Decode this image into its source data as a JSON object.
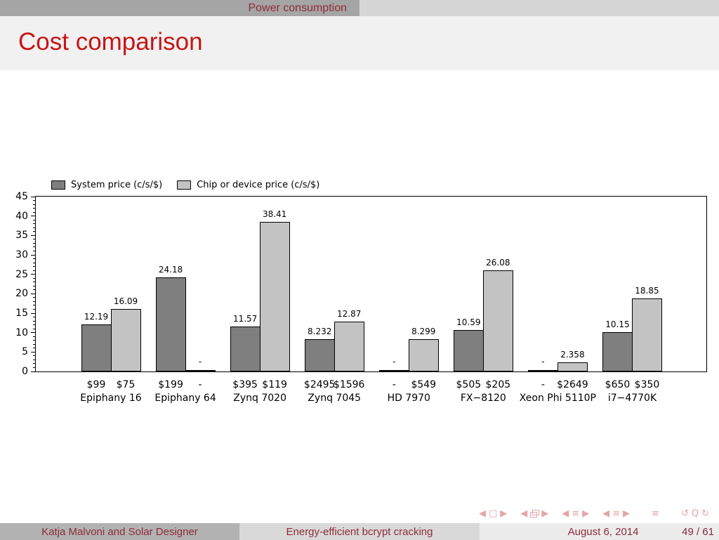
{
  "slide": {
    "navbar": {
      "section": "Power consumption"
    },
    "title": "Cost comparison",
    "footer": {
      "authors": "Katja Malvoni and Solar Designer",
      "talk": "Energy-efficient bcrypt cracking",
      "date": "August 6, 2014",
      "page": "49 / 61"
    }
  },
  "chart_data": {
    "type": "bar",
    "title": "",
    "xlabel": "",
    "ylabel": "",
    "ylim": [
      0,
      45
    ],
    "yticks": [
      0,
      5,
      10,
      15,
      20,
      25,
      30,
      35,
      40,
      45
    ],
    "ytick_minor_step": 1,
    "grid": false,
    "legend_position": "top-left",
    "categories": [
      "Epiphany 16",
      "Epiphany 64",
      "Zynq 7020",
      "Zynq 7045",
      "HD 7970",
      "FX−8120",
      "Xeon Phi 5110P",
      "i7−4770K"
    ],
    "series": [
      {
        "name": "System price (c/s/$)",
        "color": "#7f7f7f",
        "values": [
          12.19,
          24.18,
          11.57,
          8.232,
          null,
          10.59,
          null,
          10.15
        ],
        "value_labels": [
          "12.19",
          "24.18",
          "11.57",
          "8.232",
          "-",
          "10.59",
          "-",
          "10.15"
        ],
        "prices": [
          "$99",
          "$199",
          "$395",
          "$2495",
          "-",
          "$505",
          "-",
          "$650"
        ]
      },
      {
        "name": "Chip or device price (c/s/$)",
        "color": "#c3c3c3",
        "values": [
          16.09,
          null,
          38.41,
          12.87,
          8.299,
          26.08,
          2.358,
          18.85
        ],
        "value_labels": [
          "16.09",
          "-",
          "38.41",
          "12.87",
          "8.299",
          "26.08",
          "2.358",
          "18.85"
        ],
        "prices": [
          "$75",
          "-",
          "$119",
          "$1596",
          "$549",
          "$205",
          "$2649",
          "$350"
        ]
      }
    ]
  },
  "nav_symbols": {
    "color": "#e4a6a6",
    "groups": [
      [
        {
          "name": "prev-frame-icon",
          "glyph": "◀"
        },
        {
          "name": "frame-icon",
          "glyph": "□"
        },
        {
          "name": "next-frame-icon",
          "glyph": "▶"
        }
      ],
      [
        {
          "name": "prev-frameset-icon",
          "glyph": "◀"
        },
        {
          "name": "frameset-icon",
          "shape": "stacked-squares"
        },
        {
          "name": "next-frameset-icon",
          "glyph": "▶"
        }
      ],
      [
        {
          "name": "prev-section-icon",
          "glyph": "◀"
        },
        {
          "name": "section-list-icon",
          "glyph": "≡"
        },
        {
          "name": "next-section-icon",
          "glyph": "▶"
        }
      ],
      [
        {
          "name": "prev-subsection-icon",
          "glyph": "◀"
        },
        {
          "name": "subsection-list-icon",
          "glyph": "≡"
        },
        {
          "name": "next-subsection-icon",
          "glyph": "▶"
        }
      ],
      [
        {
          "name": "last-frame-icon",
          "glyph": "≡"
        }
      ],
      [
        {
          "name": "undo-icon",
          "glyph": "↺"
        },
        {
          "name": "search-icon",
          "glyph": "Q"
        },
        {
          "name": "redo-icon",
          "glyph": "↻"
        }
      ]
    ]
  }
}
